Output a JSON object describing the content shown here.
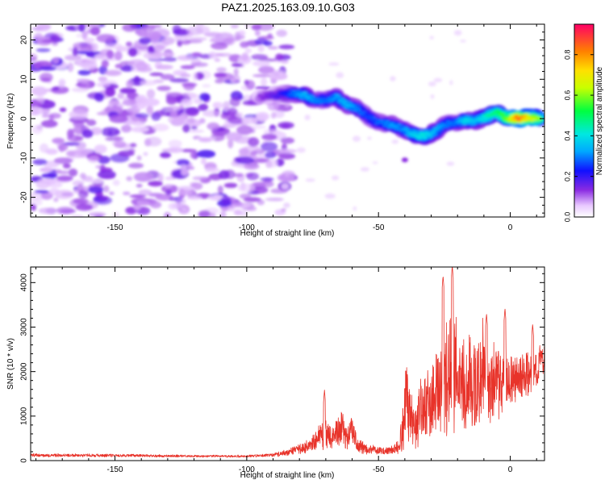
{
  "figure": {
    "title": "PAZ1.2025.163.09.10.G03"
  },
  "chart_data": [
    {
      "type": "heatmap",
      "xlabel": "Height of straight line (km)",
      "ylabel": "Frequency (Hz)",
      "xlim": [
        -182,
        13
      ],
      "ylim": [
        -25,
        24
      ],
      "xticks": [
        -150,
        -100,
        -50,
        0
      ],
      "yticks": [
        -20,
        -10,
        0,
        10,
        20
      ],
      "colorbar": {
        "label": "Normalized spectral amplitude",
        "range": [
          0,
          0.95
        ],
        "ticks": [
          0.0,
          0.2,
          0.4,
          0.6,
          0.8
        ]
      },
      "noise_region": {
        "x_range": [
          -182,
          -84
        ],
        "y_range": [
          -25,
          24
        ],
        "typical_amplitude": 0.1
      },
      "signal_ridge": [
        {
          "x": -95,
          "y": 5.5,
          "amp": 0.12
        },
        {
          "x": -88,
          "y": 6.0,
          "amp": 0.18
        },
        {
          "x": -83,
          "y": 6.3,
          "amp": 0.28
        },
        {
          "x": -78,
          "y": 6.0,
          "amp": 0.35
        },
        {
          "x": -74,
          "y": 4.5,
          "amp": 0.3
        },
        {
          "x": -70,
          "y": 4.8,
          "amp": 0.28
        },
        {
          "x": -66,
          "y": 5.5,
          "amp": 0.32
        },
        {
          "x": -62,
          "y": 3.5,
          "amp": 0.35
        },
        {
          "x": -58,
          "y": 2.5,
          "amp": 0.3
        },
        {
          "x": -54,
          "y": 0.5,
          "amp": 0.25
        },
        {
          "x": -50,
          "y": -1.0,
          "amp": 0.28
        },
        {
          "x": -45,
          "y": -1.5,
          "amp": 0.32
        },
        {
          "x": -41,
          "y": -2.5,
          "amp": 0.3
        },
        {
          "x": -37,
          "y": -4.0,
          "amp": 0.38
        },
        {
          "x": -33,
          "y": -4.5,
          "amp": 0.42
        },
        {
          "x": -29,
          "y": -3.5,
          "amp": 0.35
        },
        {
          "x": -25,
          "y": -1.5,
          "amp": 0.3
        },
        {
          "x": -21,
          "y": -1.0,
          "amp": 0.28
        },
        {
          "x": -17,
          "y": -0.5,
          "amp": 0.4
        },
        {
          "x": -13,
          "y": -0.5,
          "amp": 0.35
        },
        {
          "x": -9,
          "y": 0.5,
          "amp": 0.45
        },
        {
          "x": -5,
          "y": 1.5,
          "amp": 0.5
        },
        {
          "x": -1,
          "y": 0.0,
          "amp": 0.6
        },
        {
          "x": 3,
          "y": 0.0,
          "amp": 0.88
        },
        {
          "x": 7,
          "y": 0.3,
          "amp": 0.7
        },
        {
          "x": 11,
          "y": 0.0,
          "amp": 0.6
        }
      ]
    },
    {
      "type": "line",
      "xlabel": "Height of straight line (km)",
      "ylabel": "SNR (10 * v/v)",
      "xlim": [
        -182,
        13
      ],
      "ylim": [
        0,
        4350
      ],
      "xticks": [
        -150,
        -100,
        -50,
        0
      ],
      "yticks": [
        0,
        1000,
        2000,
        3000,
        4000
      ],
      "color": "#e8332a",
      "envelope": {
        "x": [
          -182,
          -160,
          -140,
          -120,
          -100,
          -95,
          -90,
          -85,
          -80,
          -76,
          -72,
          -70,
          -68,
          -66,
          -64,
          -62,
          -60,
          -58,
          -56,
          -54,
          -52,
          -50,
          -48,
          -46,
          -44,
          -42,
          -41,
          -40,
          -39,
          -38,
          -36,
          -34,
          -32,
          -30,
          -28,
          -26,
          -25,
          -24,
          -23,
          -22,
          -21,
          -20,
          -19,
          -18,
          -17,
          -16,
          -15,
          -14,
          -12,
          -10,
          -9,
          -8,
          -6,
          -5,
          -4,
          -2,
          0,
          2,
          4,
          6,
          8,
          10,
          12,
          13
        ],
        "mean": [
          120,
          120,
          110,
          100,
          100,
          110,
          130,
          180,
          250,
          350,
          550,
          650,
          500,
          600,
          800,
          450,
          700,
          350,
          300,
          260,
          260,
          230,
          220,
          220,
          240,
          330,
          650,
          1200,
          1450,
          900,
          700,
          1100,
          1400,
          1150,
          1600,
          1500,
          1700,
          1800,
          2200,
          2000,
          2300,
          1600,
          1900,
          1700,
          1400,
          2000,
          1800,
          1700,
          1800,
          2150,
          1800,
          1500,
          1800,
          2000,
          1700,
          1800,
          1900,
          1750,
          1800,
          2000,
          2000,
          2100,
          2250,
          2300
        ],
        "spread": [
          40,
          40,
          35,
          30,
          30,
          35,
          45,
          80,
          120,
          180,
          350,
          400,
          300,
          350,
          450,
          300,
          400,
          200,
          150,
          130,
          120,
          110,
          100,
          100,
          120,
          250,
          600,
          900,
          1100,
          800,
          600,
          800,
          900,
          850,
          1100,
          1000,
          1200,
          1500,
          1700,
          1600,
          1900,
          1300,
          1400,
          1200,
          1100,
          1300,
          1200,
          1100,
          1100,
          1200,
          1000,
          900,
          900,
          1000,
          900,
          800,
          700,
          650,
          650,
          700,
          600,
          500,
          450,
          300
        ],
        "peaks": [
          {
            "x": -70.5,
            "y": 1590
          },
          {
            "x": -25.5,
            "y": 4150
          },
          {
            "x": -22.0,
            "y": 4380
          },
          {
            "x": -9.0,
            "y": 3300
          },
          {
            "x": -2.0,
            "y": 3420
          },
          {
            "x": 8.5,
            "y": 3070
          }
        ]
      }
    }
  ]
}
